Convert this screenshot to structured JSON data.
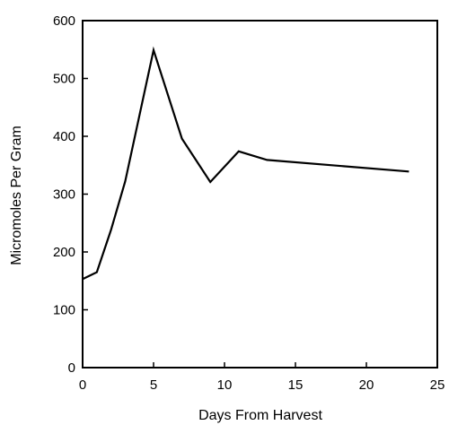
{
  "chart_data": {
    "type": "line",
    "xlabel": "Days From Harvest",
    "ylabel": "Micromoles Per Gram",
    "xlim": [
      0,
      25
    ],
    "ylim": [
      0,
      600
    ],
    "xticks": [
      0,
      5,
      10,
      15,
      20,
      25
    ],
    "yticks": [
      0,
      100,
      200,
      300,
      400,
      500,
      600
    ],
    "xtick_labels": [
      "0",
      "5",
      "10",
      "15",
      "20",
      "25"
    ],
    "ytick_labels": [
      "0",
      "100",
      "200",
      "300",
      "400",
      "500",
      "600"
    ],
    "grid": false,
    "legend": "none",
    "series": [
      {
        "x": [
          0,
          1,
          2,
          3,
          5,
          7,
          9,
          11,
          13,
          23
        ],
        "y": [
          153,
          165,
          238,
          322,
          549,
          396,
          321,
          374,
          359,
          339
        ]
      }
    ],
    "line_color": "#000000"
  }
}
